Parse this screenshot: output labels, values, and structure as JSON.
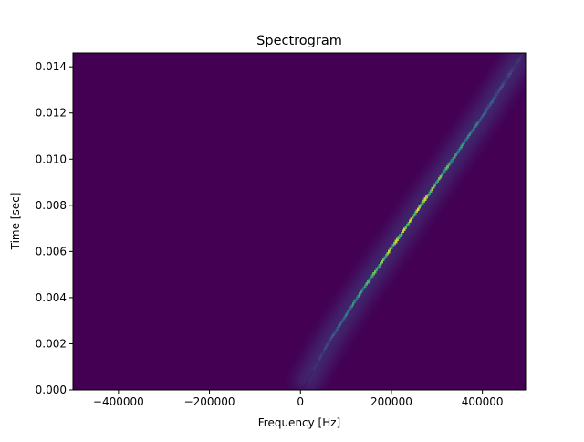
{
  "chart_data": {
    "type": "heatmap",
    "title": "Spectrogram",
    "xlabel": "Frequency [Hz]",
    "ylabel": "Time [sec]",
    "xlim": [
      -500000,
      495000
    ],
    "ylim": [
      0.0,
      0.0146
    ],
    "x_ticks": [
      -400000,
      -200000,
      0,
      200000,
      400000
    ],
    "x_tick_labels": [
      "−400000",
      "−200000",
      "0",
      "200000",
      "400000"
    ],
    "y_ticks": [
      0.0,
      0.002,
      0.004,
      0.006,
      0.008,
      0.01,
      0.012,
      0.014
    ],
    "y_tick_labels": [
      "0.000",
      "0.002",
      "0.004",
      "0.006",
      "0.008",
      "0.010",
      "0.012",
      "0.014"
    ],
    "colormap": "viridis",
    "background_color": "#440154",
    "grid": false,
    "ridge": {
      "description_points": [
        {
          "time": 0.0,
          "frequency": 5000,
          "intensity": 0.05
        },
        {
          "time": 0.002,
          "frequency": 60000,
          "intensity": 0.3
        },
        {
          "time": 0.004,
          "frequency": 125000,
          "intensity": 0.65
        },
        {
          "time": 0.006,
          "frequency": 195000,
          "intensity": 0.95
        },
        {
          "time": 0.008,
          "frequency": 265000,
          "intensity": 1.0
        },
        {
          "time": 0.01,
          "frequency": 335000,
          "intensity": 0.7
        },
        {
          "time": 0.012,
          "frequency": 405000,
          "intensity": 0.4
        },
        {
          "time": 0.0146,
          "frequency": 490000,
          "intensity": 0.15
        }
      ]
    }
  }
}
